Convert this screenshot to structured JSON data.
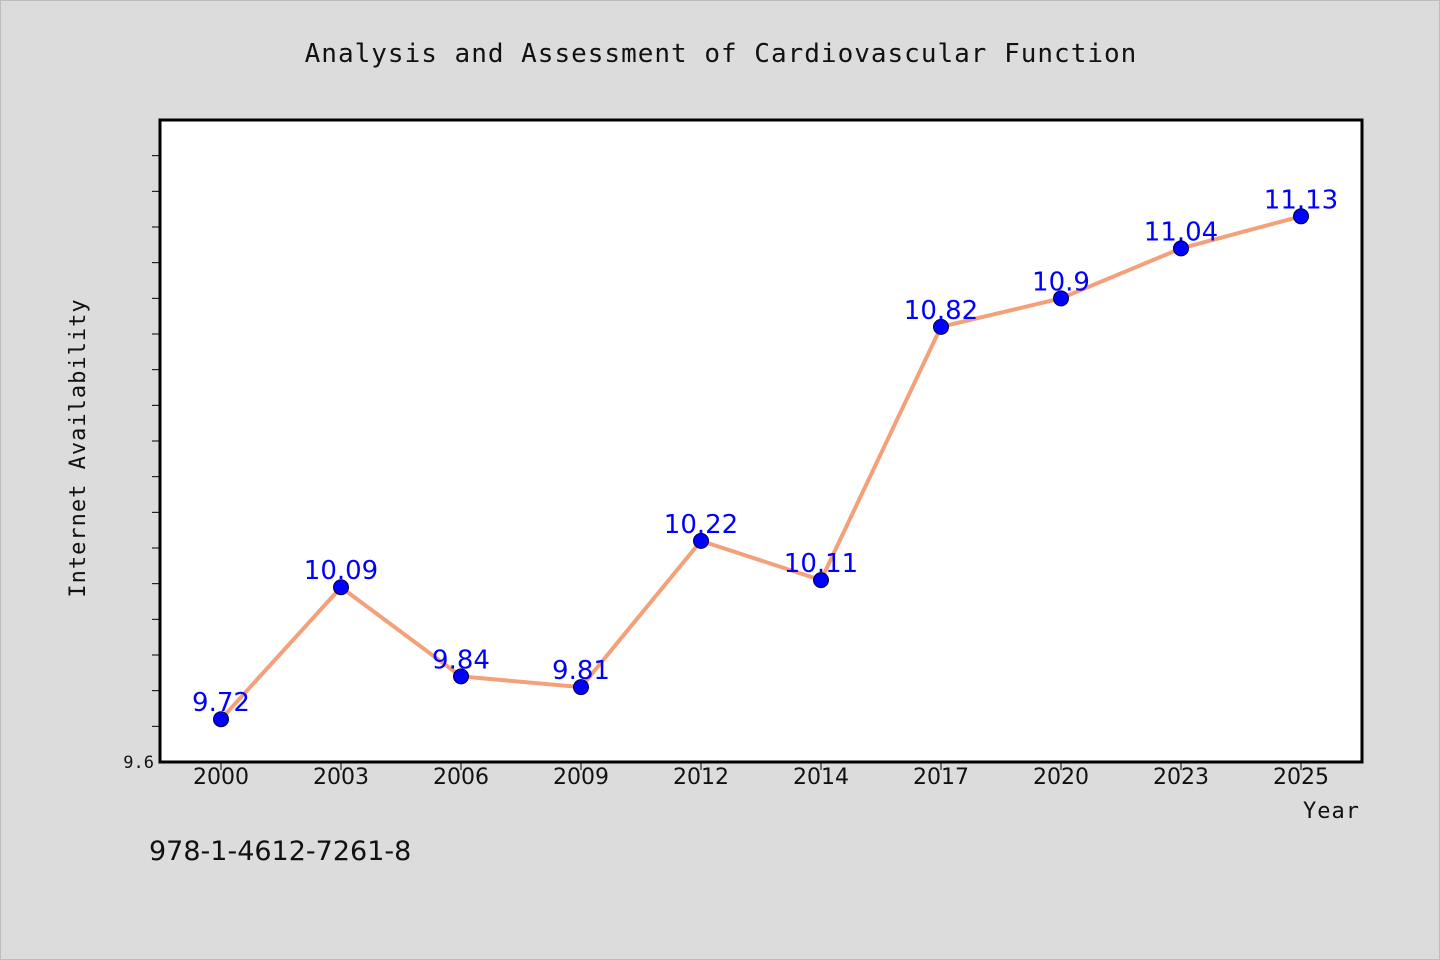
{
  "footer": {
    "isbn": "978-1-4612-7261-8"
  },
  "colors": {
    "background": "#dcdcdc",
    "plot_background": "#ffffff",
    "line": "#f4a07a",
    "marker": "#0000ff",
    "data_label": "#0000ff",
    "axis": "#000000"
  },
  "chart_data": {
    "type": "line",
    "title": "Analysis and Assessment of Cardiovascular Function",
    "xlabel": "Year",
    "ylabel": "Internet Availability",
    "categories": [
      "2000",
      "2003",
      "2006",
      "2009",
      "2012",
      "2014",
      "2017",
      "2020",
      "2023",
      "2025"
    ],
    "series": [
      {
        "values": [
          9.72,
          10.09,
          9.84,
          9.81,
          10.22,
          10.11,
          10.82,
          10.9,
          11.04,
          11.13
        ]
      }
    ],
    "data_labels": [
      "9.72",
      "10.09",
      "9.84",
      "9.81",
      "10.22",
      "10.11",
      "10.82",
      "10.9",
      "11.04",
      "11.13"
    ],
    "y_tick_labels": [
      "9.6"
    ],
    "ylim": [
      9.6,
      11.4
    ],
    "grid": false,
    "legend": "none"
  }
}
